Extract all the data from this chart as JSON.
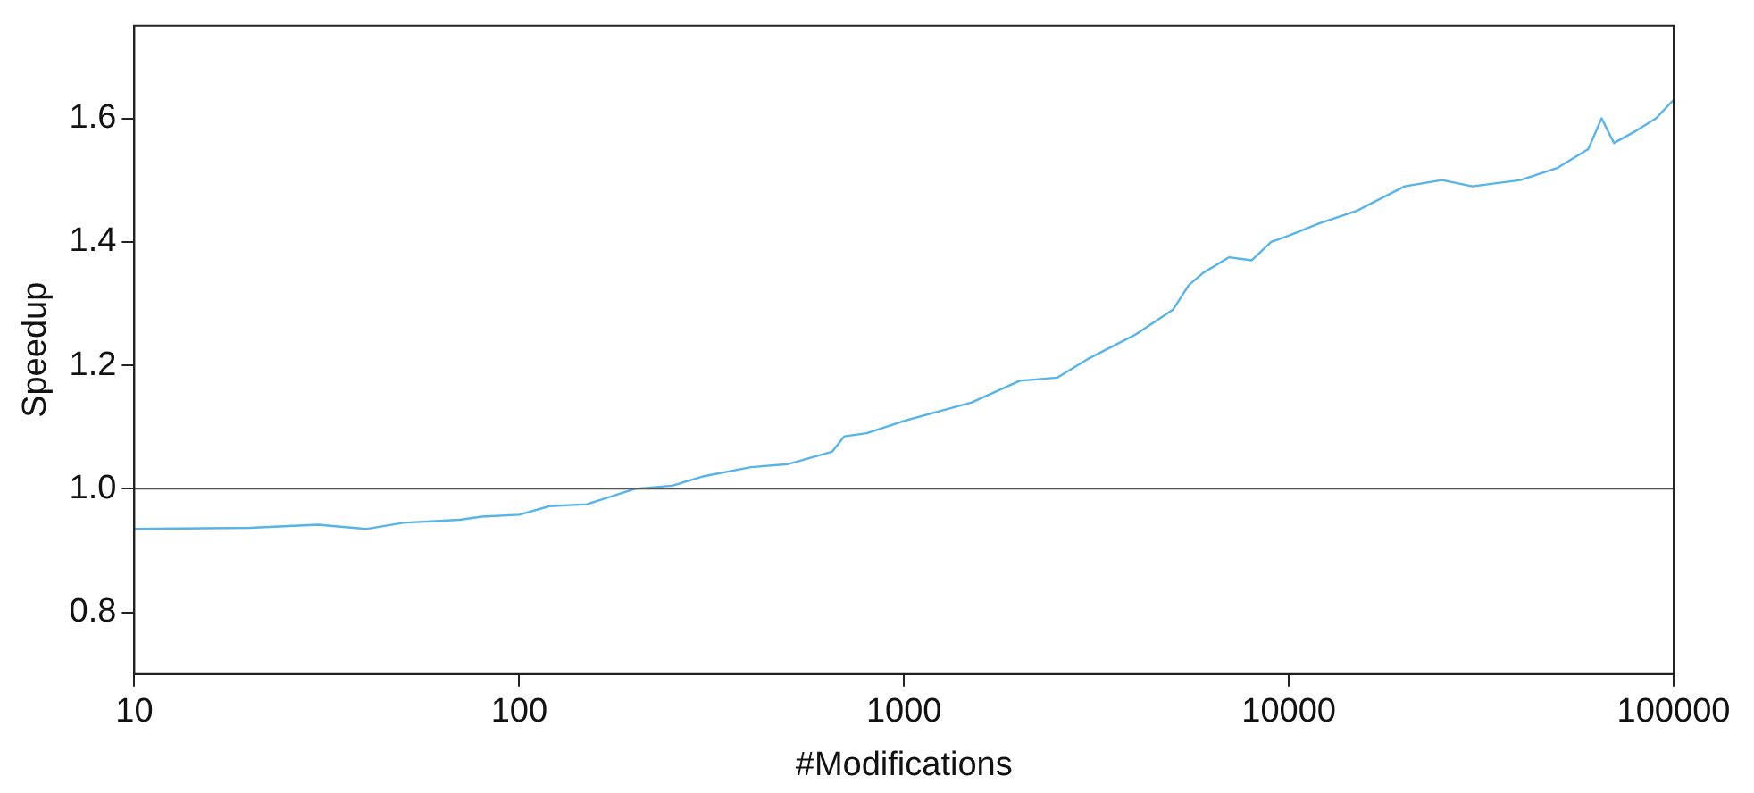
{
  "chart_data": {
    "type": "line",
    "xlabel": "#Modifications",
    "ylabel": "Speedup",
    "log": "x",
    "grid": false,
    "legend": false,
    "marker": "none",
    "line_style": "solid",
    "xlim": [
      10,
      100000
    ],
    "xticks": [
      10,
      100,
      1000,
      10000,
      100000
    ],
    "ylim": [
      0.7,
      1.75
    ],
    "yticks": [
      0.8,
      {
        "value": 1,
        "label": "1.0"
      },
      1.2,
      1.4,
      1.6
    ],
    "ref_lines": [
      {
        "axis": "y",
        "value": 1,
        "color": "#555555"
      }
    ],
    "x": [
      10,
      20,
      30,
      40,
      50,
      70,
      80,
      100,
      120,
      150,
      200,
      250,
      300,
      400,
      500,
      650,
      700,
      800,
      1000,
      1500,
      2000,
      2500,
      3000,
      4000,
      5000,
      5500,
      6000,
      7000,
      8000,
      9000,
      10000,
      12000,
      15000,
      20000,
      25000,
      30000,
      40000,
      50000,
      60000,
      65000,
      70000,
      80000,
      90000,
      100000
    ],
    "series": [
      {
        "color": "#56b4e9",
        "values": [
          0.935,
          0.937,
          0.942,
          0.935,
          0.945,
          0.95,
          0.955,
          0.958,
          0.972,
          0.975,
          1.0,
          1.005,
          1.02,
          1.035,
          1.04,
          1.06,
          1.085,
          1.09,
          1.11,
          1.14,
          1.175,
          1.18,
          1.21,
          1.25,
          1.29,
          1.33,
          1.35,
          1.375,
          1.37,
          1.4,
          1.41,
          1.43,
          1.45,
          1.49,
          1.5,
          1.49,
          1.5,
          1.52,
          1.55,
          1.6,
          1.56,
          1.58,
          1.6,
          1.63
        ]
      }
    ]
  }
}
